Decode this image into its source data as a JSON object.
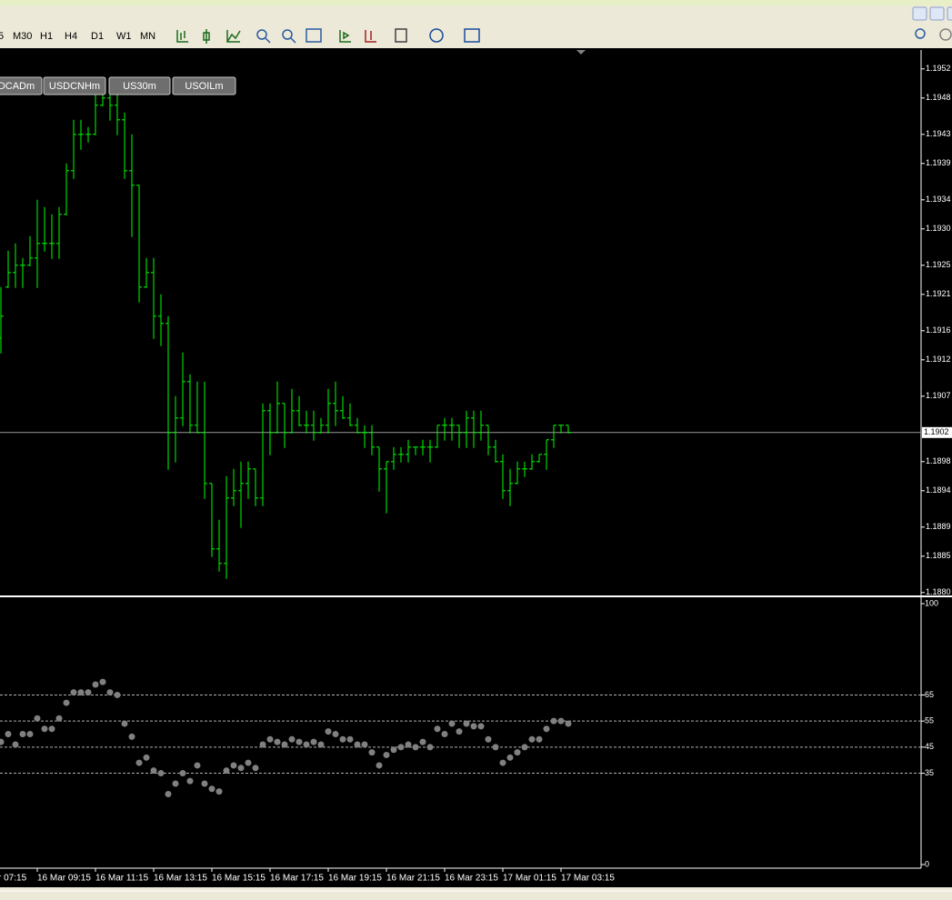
{
  "toolbar": {
    "periods": [
      "5",
      "M30",
      "H1",
      "H4",
      "D1",
      "W1",
      "MN"
    ]
  },
  "symbol_buttons": [
    "DCADm",
    "USDCNHm",
    "US30m",
    "USOILm"
  ],
  "chart_data": [
    {
      "type": "ohlc",
      "color": "#00ff00",
      "open": [
        1.1915,
        1.1922,
        1.1924,
        1.1925,
        1.1925,
        1.1926,
        1.1928,
        1.1928,
        1.1928,
        1.1932,
        1.1938,
        1.1943,
        1.1943,
        1.1943,
        1.1947,
        1.1948,
        1.1947,
        1.1945,
        1.1938,
        1.1936,
        1.1922,
        1.1924,
        1.1918,
        1.1917,
        1.1902,
        1.1904,
        1.1909,
        1.1903,
        1.1902,
        1.1895,
        1.1886,
        1.1884,
        1.1893,
        1.1894,
        1.1895,
        1.1897,
        1.1893,
        1.1905,
        1.1902,
        1.1906,
        1.1902,
        1.1905,
        1.1903,
        1.1903,
        1.1902,
        1.1903,
        1.1906,
        1.1905,
        1.1904,
        1.1903,
        1.1902,
        1.1902,
        1.19,
        1.1897,
        1.1898,
        1.1899,
        1.1899,
        1.19,
        1.19,
        1.19,
        1.19,
        1.1903,
        1.1903,
        1.1903,
        1.1902,
        1.1904,
        1.1902,
        1.1903,
        1.19,
        1.1898,
        1.1894,
        1.1895,
        1.1897,
        1.1897,
        1.1898,
        1.1899,
        1.1901,
        1.1903,
        1.1903
      ],
      "high": [
        1.1922,
        1.1927,
        1.1928,
        1.1926,
        1.1929,
        1.1934,
        1.1933,
        1.1932,
        1.1933,
        1.1939,
        1.1945,
        1.1945,
        1.1944,
        1.1949,
        1.1949,
        1.195,
        1.1949,
        1.1946,
        1.1943,
        1.1936,
        1.1926,
        1.1926,
        1.1921,
        1.1918,
        1.1907,
        1.1913,
        1.191,
        1.1909,
        1.1909,
        1.1895,
        1.189,
        1.1896,
        1.1897,
        1.1898,
        1.1898,
        1.1897,
        1.1906,
        1.1906,
        1.1909,
        1.1906,
        1.1908,
        1.1907,
        1.1905,
        1.1905,
        1.1904,
        1.1908,
        1.1909,
        1.1907,
        1.1906,
        1.1904,
        1.1903,
        1.1903,
        1.19,
        1.1898,
        1.19,
        1.19,
        1.1901,
        1.19,
        1.1901,
        1.1901,
        1.1903,
        1.1904,
        1.1904,
        1.1903,
        1.1905,
        1.1905,
        1.1905,
        1.1903,
        1.1901,
        1.1899,
        1.1897,
        1.1898,
        1.1898,
        1.1899,
        1.1899,
        1.1901,
        1.1903,
        1.1903,
        1.1903
      ],
      "low": [
        1.1913,
        1.1922,
        1.1922,
        1.1922,
        1.1925,
        1.1922,
        1.1927,
        1.1926,
        1.1926,
        1.1932,
        1.1937,
        1.1941,
        1.1942,
        1.1943,
        1.1947,
        1.1945,
        1.1943,
        1.1937,
        1.1929,
        1.192,
        1.1922,
        1.1915,
        1.1914,
        1.1897,
        1.1898,
        1.1903,
        1.1902,
        1.1902,
        1.1893,
        1.1885,
        1.1883,
        1.1882,
        1.1892,
        1.1889,
        1.1893,
        1.1892,
        1.1892,
        1.1899,
        1.1902,
        1.19,
        1.1902,
        1.1903,
        1.1902,
        1.1901,
        1.1902,
        1.1902,
        1.1903,
        1.1904,
        1.1903,
        1.1902,
        1.19,
        1.1899,
        1.1894,
        1.1891,
        1.1897,
        1.1898,
        1.1898,
        1.1899,
        1.1899,
        1.1898,
        1.19,
        1.1901,
        1.1901,
        1.19,
        1.19,
        1.19,
        1.1901,
        1.1899,
        1.1898,
        1.1893,
        1.1892,
        1.1895,
        1.1896,
        1.1897,
        1.1898,
        1.1897,
        1.19,
        1.1902,
        1.1902
      ],
      "close": [
        1.1918,
        1.1924,
        1.1925,
        1.1925,
        1.1926,
        1.1928,
        1.1928,
        1.1928,
        1.1932,
        1.1938,
        1.1943,
        1.1943,
        1.1943,
        1.1947,
        1.1948,
        1.1947,
        1.1945,
        1.1938,
        1.1936,
        1.1922,
        1.1924,
        1.1918,
        1.1917,
        1.1902,
        1.1904,
        1.1909,
        1.1903,
        1.1902,
        1.1895,
        1.1886,
        1.1884,
        1.1893,
        1.1894,
        1.1895,
        1.1897,
        1.1893,
        1.1905,
        1.1902,
        1.1906,
        1.1902,
        1.1905,
        1.1903,
        1.1903,
        1.1902,
        1.1903,
        1.1906,
        1.1905,
        1.1904,
        1.1903,
        1.1902,
        1.1902,
        1.19,
        1.1897,
        1.1898,
        1.1899,
        1.1899,
        1.19,
        1.19,
        1.19,
        1.19,
        1.1903,
        1.1903,
        1.1903,
        1.1902,
        1.1904,
        1.1902,
        1.1903,
        1.19,
        1.1898,
        1.1894,
        1.1895,
        1.1897,
        1.1897,
        1.1898,
        1.1899,
        1.1901,
        1.1903,
        1.1903,
        1.1902
      ],
      "ylim": [
        1.18796,
        1.19546
      ],
      "yticks": [
        1.1952,
        1.1948,
        1.1943,
        1.1939,
        1.1934,
        {
          "value": 1.193,
          "label": "1.1930"
        },
        1.1925,
        1.1921,
        1.1916,
        1.1912,
        1.1907,
        1.1898,
        1.1894,
        1.1889,
        1.1885,
        {
          "value": 1.188,
          "label": "1.1880"
        }
      ],
      "price_line": 1.1902
    },
    {
      "type": "dots",
      "color": "#808080",
      "values": [
        47,
        50,
        46,
        50,
        50,
        56,
        52,
        52,
        56,
        62,
        66,
        66,
        66,
        69,
        70,
        66,
        65,
        54,
        49,
        39,
        41,
        36,
        35,
        27,
        31,
        35,
        32,
        38,
        31,
        29,
        28,
        36,
        38,
        37,
        39,
        37,
        46,
        48,
        47,
        46,
        48,
        47,
        46,
        47,
        46,
        51,
        50,
        48,
        48,
        46,
        46,
        43,
        38,
        42,
        44,
        45,
        46,
        45,
        47,
        45,
        52,
        50,
        54,
        51,
        54,
        53,
        53,
        48,
        45,
        39,
        41,
        43,
        45,
        48,
        48,
        52,
        55,
        55,
        54
      ],
      "categories": [
        null,
        null,
        null,
        null,
        null,
        "16 Mar 09:15",
        null,
        null,
        null,
        null,
        null,
        null,
        null,
        "16 Mar 11:15",
        null,
        null,
        null,
        null,
        null,
        null,
        null,
        "16 Mar 13:15",
        null,
        null,
        null,
        null,
        null,
        null,
        null,
        "16 Mar 15:15",
        null,
        null,
        null,
        null,
        null,
        null,
        null,
        "16 Mar 17:15",
        null,
        null,
        null,
        null,
        null,
        null,
        null,
        "16 Mar 19:15",
        null,
        null,
        null,
        null,
        null,
        null,
        null,
        "16 Mar 21:15",
        null,
        null,
        null,
        null,
        null,
        null,
        null,
        "16 Mar 23:15",
        null,
        null,
        null,
        null,
        null,
        null,
        null,
        "17 Mar 01:15",
        null,
        null,
        null,
        null,
        null,
        null,
        null,
        "17 Mar 03:15",
        null
      ],
      "x_label_clipped": "r 07:15",
      "ylim": [
        -1.4,
        102.1
      ],
      "yticks": [
        100,
        65,
        55,
        45,
        35,
        0
      ],
      "levels": [
        65,
        55,
        45,
        35
      ]
    }
  ]
}
